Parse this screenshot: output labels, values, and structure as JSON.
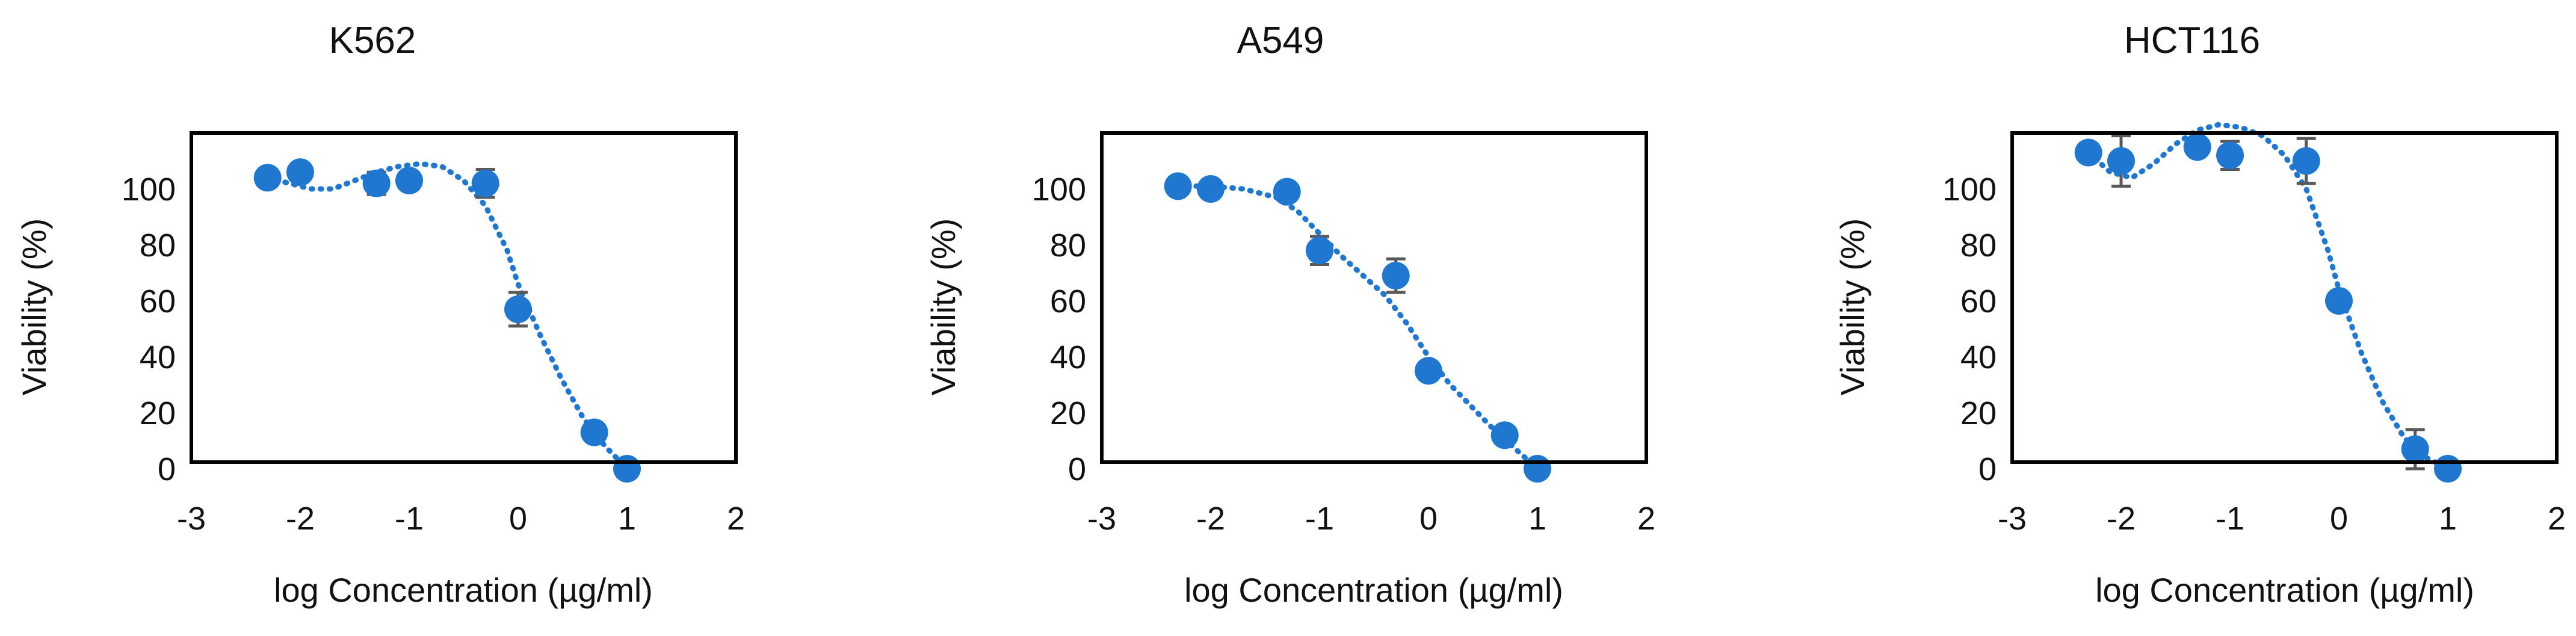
{
  "colors": {
    "marker": "#1f77d0",
    "curve": "#1f77d0",
    "errorbar": "#595959",
    "frame": "#000000"
  },
  "chart_data": [
    {
      "type": "scatter",
      "title": "K562",
      "xlabel": "log Concentration (µg/ml)",
      "ylabel": "Viability (%)",
      "xlim": [
        -3,
        2
      ],
      "ylim": [
        0,
        120
      ],
      "xticks": [
        -3,
        -2,
        -1,
        0,
        1,
        2
      ],
      "yticks": [
        0,
        20,
        40,
        60,
        80,
        100
      ],
      "grid": false,
      "legend": "none",
      "points": [
        {
          "x": -2.3,
          "y": 104,
          "err": 2
        },
        {
          "x": -2.0,
          "y": 106,
          "err": 3
        },
        {
          "x": -1.3,
          "y": 102,
          "err": 4
        },
        {
          "x": -1.0,
          "y": 103,
          "err": 3
        },
        {
          "x": -0.3,
          "y": 102,
          "err": 5
        },
        {
          "x": 0.0,
          "y": 57,
          "err": 6
        },
        {
          "x": 0.7,
          "y": 13,
          "err": 2
        },
        {
          "x": 1.0,
          "y": 0,
          "err": 1
        }
      ],
      "fit": [
        {
          "x": -2.3,
          "y": 104
        },
        {
          "x": -2.1,
          "y": 102
        },
        {
          "x": -1.9,
          "y": 100
        },
        {
          "x": -1.7,
          "y": 100
        },
        {
          "x": -1.5,
          "y": 103
        },
        {
          "x": -1.3,
          "y": 106
        },
        {
          "x": -1.1,
          "y": 108
        },
        {
          "x": -0.9,
          "y": 109
        },
        {
          "x": -0.7,
          "y": 108
        },
        {
          "x": -0.5,
          "y": 103
        },
        {
          "x": -0.3,
          "y": 94
        },
        {
          "x": -0.1,
          "y": 78
        },
        {
          "x": 0.0,
          "y": 66
        },
        {
          "x": 0.2,
          "y": 48
        },
        {
          "x": 0.4,
          "y": 32
        },
        {
          "x": 0.6,
          "y": 18
        },
        {
          "x": 0.8,
          "y": 8
        },
        {
          "x": 1.0,
          "y": 0
        }
      ]
    },
    {
      "type": "scatter",
      "title": "A549",
      "xlabel": "log Concentration (µg/ml)",
      "ylabel": "Viability (%)",
      "xlim": [
        -3,
        2
      ],
      "ylim": [
        0,
        120
      ],
      "xticks": [
        -3,
        -2,
        -1,
        0,
        1,
        2
      ],
      "yticks": [
        0,
        20,
        40,
        60,
        80,
        100
      ],
      "grid": false,
      "legend": "none",
      "points": [
        {
          "x": -2.3,
          "y": 101,
          "err": 1
        },
        {
          "x": -2.0,
          "y": 100,
          "err": 2
        },
        {
          "x": -1.3,
          "y": 99,
          "err": 2
        },
        {
          "x": -1.0,
          "y": 78,
          "err": 5
        },
        {
          "x": -0.3,
          "y": 69,
          "err": 6
        },
        {
          "x": 0.0,
          "y": 35,
          "err": 2
        },
        {
          "x": 0.7,
          "y": 12,
          "err": 2
        },
        {
          "x": 1.0,
          "y": 0,
          "err": 1
        }
      ],
      "fit": [
        {
          "x": -2.3,
          "y": 101
        },
        {
          "x": -2.0,
          "y": 101
        },
        {
          "x": -1.7,
          "y": 100
        },
        {
          "x": -1.4,
          "y": 97
        },
        {
          "x": -1.2,
          "y": 92
        },
        {
          "x": -1.0,
          "y": 84
        },
        {
          "x": -0.8,
          "y": 76
        },
        {
          "x": -0.6,
          "y": 69
        },
        {
          "x": -0.4,
          "y": 62
        },
        {
          "x": -0.2,
          "y": 52
        },
        {
          "x": 0.0,
          "y": 40
        },
        {
          "x": 0.2,
          "y": 30
        },
        {
          "x": 0.4,
          "y": 22
        },
        {
          "x": 0.6,
          "y": 14
        },
        {
          "x": 0.8,
          "y": 7
        },
        {
          "x": 1.0,
          "y": 0
        }
      ]
    },
    {
      "type": "scatter",
      "title": "HCT116",
      "xlabel": "log Concentration (µg/ml)",
      "ylabel": "Viability (%)",
      "xlim": [
        -3,
        2
      ],
      "ylim": [
        0,
        120
      ],
      "xticks": [
        -3,
        -2,
        -1,
        0,
        1,
        2
      ],
      "yticks": [
        0,
        20,
        40,
        60,
        80,
        100
      ],
      "grid": false,
      "legend": "none",
      "points": [
        {
          "x": -2.3,
          "y": 113,
          "err": 2
        },
        {
          "x": -2.0,
          "y": 110,
          "err": 9
        },
        {
          "x": -1.3,
          "y": 115,
          "err": 2
        },
        {
          "x": -1.0,
          "y": 112,
          "err": 5
        },
        {
          "x": -0.3,
          "y": 110,
          "err": 8
        },
        {
          "x": 0.0,
          "y": 60,
          "err": 2
        },
        {
          "x": 0.7,
          "y": 7,
          "err": 7
        },
        {
          "x": 1.0,
          "y": 0,
          "err": 1
        }
      ],
      "fit": [
        {
          "x": -2.3,
          "y": 113
        },
        {
          "x": -2.1,
          "y": 106
        },
        {
          "x": -1.9,
          "y": 104
        },
        {
          "x": -1.7,
          "y": 109
        },
        {
          "x": -1.5,
          "y": 116
        },
        {
          "x": -1.3,
          "y": 121
        },
        {
          "x": -1.1,
          "y": 123
        },
        {
          "x": -0.9,
          "y": 122
        },
        {
          "x": -0.7,
          "y": 119
        },
        {
          "x": -0.5,
          "y": 112
        },
        {
          "x": -0.3,
          "y": 100
        },
        {
          "x": -0.1,
          "y": 78
        },
        {
          "x": 0.0,
          "y": 64
        },
        {
          "x": 0.2,
          "y": 42
        },
        {
          "x": 0.4,
          "y": 24
        },
        {
          "x": 0.6,
          "y": 11
        },
        {
          "x": 0.8,
          "y": 4
        },
        {
          "x": 1.0,
          "y": 0
        }
      ]
    }
  ]
}
